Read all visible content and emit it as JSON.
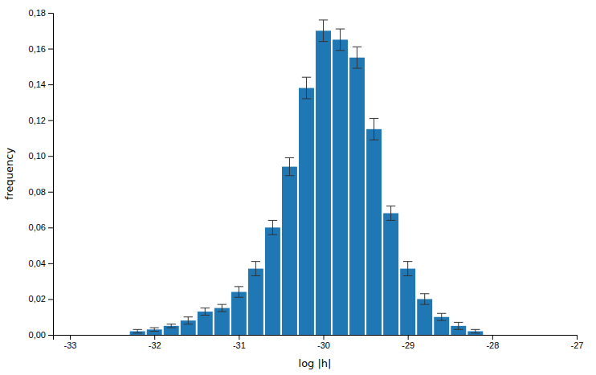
{
  "chart_data": {
    "type": "bar",
    "xlabel": "log |h|",
    "ylabel": "frequency",
    "x": [
      -32.2,
      -32.0,
      -31.8,
      -31.6,
      -31.4,
      -31.2,
      -31.0,
      -30.8,
      -30.6,
      -30.4,
      -30.2,
      -30.0,
      -29.8,
      -29.6,
      -29.4,
      -29.2,
      -29.0,
      -28.8,
      -28.6,
      -28.4,
      -28.2
    ],
    "values": [
      0.002,
      0.003,
      0.005,
      0.008,
      0.013,
      0.015,
      0.024,
      0.037,
      0.06,
      0.094,
      0.138,
      0.17,
      0.165,
      0.155,
      0.115,
      0.068,
      0.037,
      0.02,
      0.01,
      0.005,
      0.002
    ],
    "errors": [
      0.001,
      0.001,
      0.001,
      0.002,
      0.002,
      0.002,
      0.003,
      0.004,
      0.004,
      0.005,
      0.006,
      0.006,
      0.006,
      0.006,
      0.006,
      0.004,
      0.004,
      0.003,
      0.002,
      0.002,
      0.001
    ],
    "xlim": [
      -33.2,
      -27.0
    ],
    "ylim": [
      0.0,
      0.18
    ],
    "xticks": [
      -33,
      -32,
      -31,
      -30,
      -29,
      -28,
      -27
    ],
    "yticks": [
      {
        "value": 0.0,
        "label": "0,00"
      },
      {
        "value": 0.02,
        "label": "0,02"
      },
      {
        "value": 0.04,
        "label": "0,04"
      },
      {
        "value": 0.06,
        "label": "0,06"
      },
      {
        "value": 0.08,
        "label": "0,08"
      },
      {
        "value": 0.1,
        "label": "0,10"
      },
      {
        "value": 0.12,
        "label": "0,12"
      },
      {
        "value": 0.14,
        "label": "0,14"
      },
      {
        "value": 0.16,
        "label": "0,16"
      },
      {
        "value": 0.18,
        "label": "0,18"
      }
    ],
    "grid": false
  }
}
